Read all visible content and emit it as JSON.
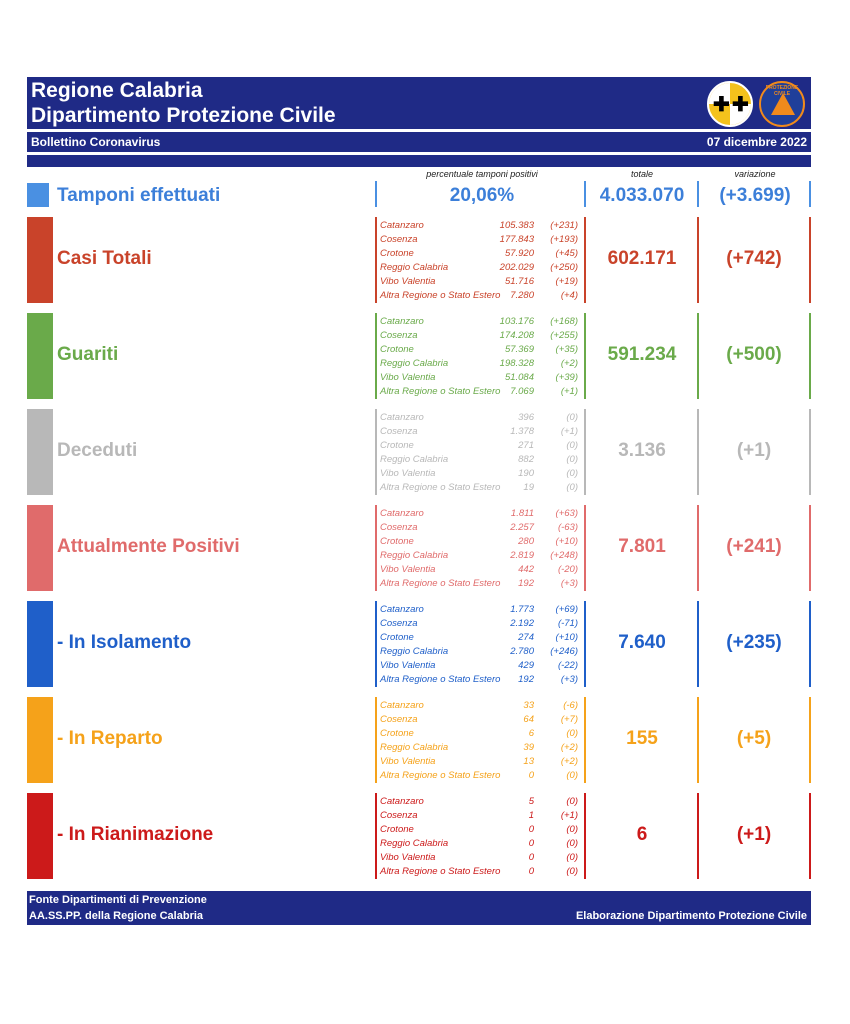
{
  "header": {
    "title1": "Regione Calabria",
    "title2": "Dipartimento Protezione Civile",
    "subtitle": "Bollettino Coronavirus",
    "date": "07 dicembre 2022",
    "logo2_text": "PROTEZIONE CIVILE"
  },
  "columns": {
    "pct_header": "percentuale tamponi positivi",
    "total_header": "totale",
    "var_header": "variazione"
  },
  "tamponi": {
    "label": "Tamponi effettuati",
    "pct": "20,06%",
    "total": "4.033.070",
    "var": "(+3.699)"
  },
  "colors": {
    "casi": "#c9432a",
    "guariti": "#6aaa4a",
    "deceduti": "#b8b8b8",
    "positivi": "#e06b6b",
    "isolamento": "#1f5fc9",
    "reparto": "#f5a21a",
    "rianimazione": "#cc1a1a"
  },
  "sections": [
    {
      "label": "Casi Totali",
      "total": "602.171",
      "var": "(+742)",
      "rows": [
        {
          "n": "Catanzaro",
          "v": "105.383",
          "d": "(+231)"
        },
        {
          "n": "Cosenza",
          "v": "177.843",
          "d": "(+193)"
        },
        {
          "n": "Crotone",
          "v": "57.920",
          "d": "(+45)"
        },
        {
          "n": "Reggio Calabria",
          "v": "202.029",
          "d": "(+250)"
        },
        {
          "n": "Vibo Valentia",
          "v": "51.716",
          "d": "(+19)"
        },
        {
          "n": "Altra Regione o Stato Estero",
          "v": "7.280",
          "d": "(+4)"
        }
      ]
    },
    {
      "label": "Guariti",
      "total": "591.234",
      "var": "(+500)",
      "rows": [
        {
          "n": "Catanzaro",
          "v": "103.176",
          "d": "(+168)"
        },
        {
          "n": "Cosenza",
          "v": "174.208",
          "d": "(+255)"
        },
        {
          "n": "Crotone",
          "v": "57.369",
          "d": "(+35)"
        },
        {
          "n": "Reggio Calabria",
          "v": "198.328",
          "d": "(+2)"
        },
        {
          "n": "Vibo Valentia",
          "v": "51.084",
          "d": "(+39)"
        },
        {
          "n": "Altra Regione o Stato Estero",
          "v": "7.069",
          "d": "(+1)"
        }
      ]
    },
    {
      "label": "Deceduti",
      "total": "3.136",
      "var": "(+1)",
      "rows": [
        {
          "n": "Catanzaro",
          "v": "396",
          "d": "(0)"
        },
        {
          "n": "Cosenza",
          "v": "1.378",
          "d": "(+1)"
        },
        {
          "n": "Crotone",
          "v": "271",
          "d": "(0)"
        },
        {
          "n": "Reggio Calabria",
          "v": "882",
          "d": "(0)"
        },
        {
          "n": "Vibo Valentia",
          "v": "190",
          "d": "(0)"
        },
        {
          "n": "Altra Regione o Stato Estero",
          "v": "19",
          "d": "(0)"
        }
      ]
    },
    {
      "label": "Attualmente Positivi",
      "total": "7.801",
      "var": "(+241)",
      "rows": [
        {
          "n": "Catanzaro",
          "v": "1.811",
          "d": "(+63)"
        },
        {
          "n": "Cosenza",
          "v": "2.257",
          "d": "(-63)"
        },
        {
          "n": "Crotone",
          "v": "280",
          "d": "(+10)"
        },
        {
          "n": "Reggio Calabria",
          "v": "2.819",
          "d": "(+248)"
        },
        {
          "n": "Vibo Valentia",
          "v": "442",
          "d": "(-20)"
        },
        {
          "n": "Altra Regione o Stato Estero",
          "v": "192",
          "d": "(+3)"
        }
      ]
    },
    {
      "label": "- In Isolamento",
      "total": "7.640",
      "var": "(+235)",
      "rows": [
        {
          "n": "Catanzaro",
          "v": "1.773",
          "d": "(+69)"
        },
        {
          "n": "Cosenza",
          "v": "2.192",
          "d": "(-71)"
        },
        {
          "n": "Crotone",
          "v": "274",
          "d": "(+10)"
        },
        {
          "n": "Reggio Calabria",
          "v": "2.780",
          "d": "(+246)"
        },
        {
          "n": "Vibo Valentia",
          "v": "429",
          "d": "(-22)"
        },
        {
          "n": "Altra Regione o Stato Estero",
          "v": "192",
          "d": "(+3)"
        }
      ]
    },
    {
      "label": "- In Reparto",
      "total": "155",
      "var": "(+5)",
      "rows": [
        {
          "n": "Catanzaro",
          "v": "33",
          "d": "(-6)"
        },
        {
          "n": "Cosenza",
          "v": "64",
          "d": "(+7)"
        },
        {
          "n": "Crotone",
          "v": "6",
          "d": "(0)"
        },
        {
          "n": "Reggio Calabria",
          "v": "39",
          "d": "(+2)"
        },
        {
          "n": "Vibo Valentia",
          "v": "13",
          "d": "(+2)"
        },
        {
          "n": "Altra Regione o Stato Estero",
          "v": "0",
          "d": "(0)"
        }
      ]
    },
    {
      "label": "- In Rianimazione",
      "total": "6",
      "var": "(+1)",
      "rows": [
        {
          "n": "Catanzaro",
          "v": "5",
          "d": "(0)"
        },
        {
          "n": "Cosenza",
          "v": "1",
          "d": "(+1)"
        },
        {
          "n": "Crotone",
          "v": "0",
          "d": "(0)"
        },
        {
          "n": "Reggio Calabria",
          "v": "0",
          "d": "(0)"
        },
        {
          "n": "Vibo Valentia",
          "v": "0",
          "d": "(0)"
        },
        {
          "n": "Altra Regione o Stato Estero",
          "v": "0",
          "d": "(0)"
        }
      ]
    }
  ],
  "footer": {
    "line1": "Fonte Dipartimenti di Prevenzione",
    "line2": "AA.SS.PP.  della Regione Calabria",
    "right": "Elaborazione Dipartimento Protezione Civile"
  }
}
